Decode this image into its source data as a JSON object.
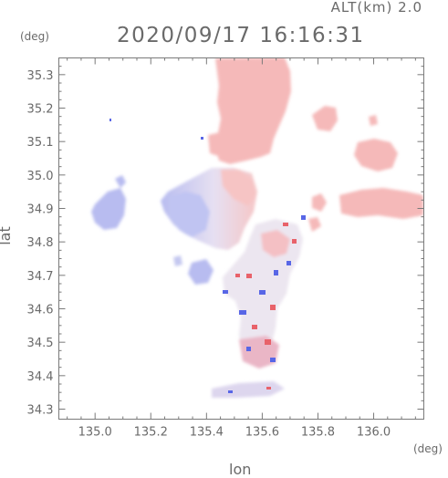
{
  "header": {
    "altitude_label": "ALT(km)  2.0",
    "timestamp": "2020/09/17 16:16:31"
  },
  "axes": {
    "x_title": "lon",
    "y_title": "lat",
    "x_unit": "(deg)",
    "y_unit": "(deg)",
    "x_range": [
      134.87,
      136.18
    ],
    "y_range": [
      34.27,
      35.35
    ],
    "x_ticks": [
      "135.0",
      "135.2",
      "135.4",
      "135.6",
      "135.8",
      "136.0"
    ],
    "y_ticks": [
      "34.3",
      "34.4",
      "34.5",
      "34.6",
      "34.7",
      "34.8",
      "34.9",
      "35.0",
      "35.1",
      "35.2",
      "35.3"
    ]
  },
  "colors": {
    "axis": "#7a7a7a",
    "text": "#6a6a6a",
    "echo_positive": "#f4b4b4",
    "echo_positive_strong": "#e8626a",
    "echo_negative": "#b8bcf0",
    "echo_negative_strong": "#5866e6",
    "echo_neutral": "#ece6f0"
  }
}
